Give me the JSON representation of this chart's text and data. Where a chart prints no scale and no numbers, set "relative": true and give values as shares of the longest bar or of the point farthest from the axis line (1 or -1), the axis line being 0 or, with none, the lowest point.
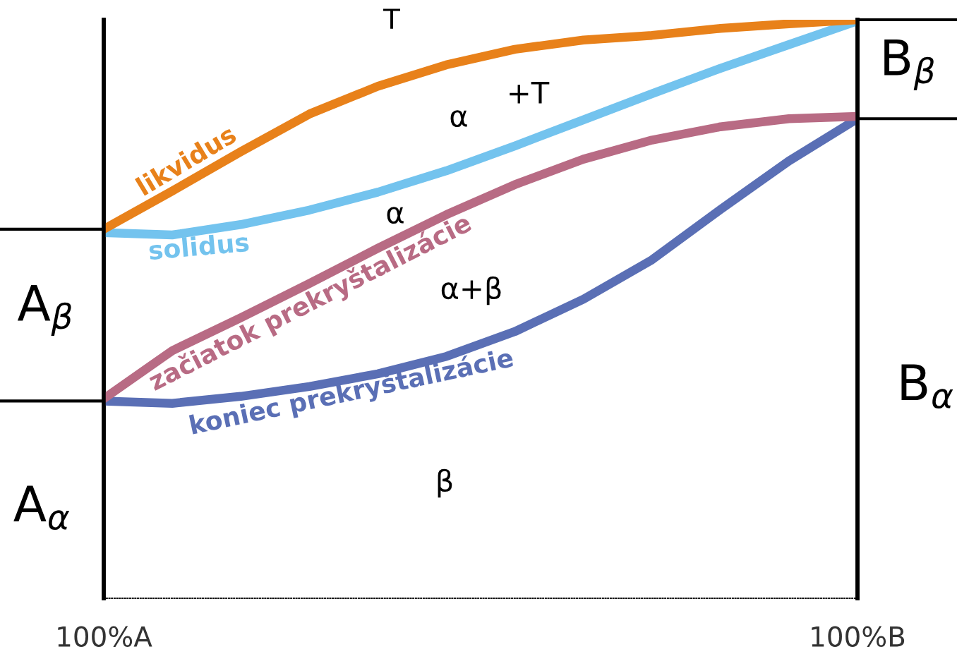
{
  "chart_data": {
    "type": "line",
    "relative": true,
    "categories": [
      "100%A",
      null,
      null,
      null,
      null,
      null,
      null,
      null,
      null,
      null,
      null,
      "100%B"
    ],
    "line_style": "solid",
    "marker": "none",
    "grid": false,
    "series": [
      {
        "name": "likvidus",
        "color": "#e8811a",
        "values": [
          0.638,
          0.704,
          0.772,
          0.837,
          0.885,
          0.922,
          0.949,
          0.965,
          0.973,
          0.985,
          0.993,
          1.0
        ]
      },
      {
        "name": "solidus",
        "color": "#73c3ee",
        "values": [
          0.632,
          0.628,
          0.646,
          0.671,
          0.702,
          0.739,
          0.782,
          0.827,
          0.872,
          0.916,
          0.957,
          0.998
        ]
      },
      {
        "name": "začiatok prekryštalizácie",
        "color": "#b86b84",
        "values": [
          0.345,
          0.428,
          0.485,
          0.544,
          0.605,
          0.663,
          0.715,
          0.759,
          0.792,
          0.815,
          0.829,
          0.833
        ]
      },
      {
        "name": "koniec prekryštalizácie",
        "color": "#5a6fb5",
        "values": [
          0.341,
          0.337,
          0.349,
          0.366,
          0.388,
          0.418,
          0.461,
          0.517,
          0.585,
          0.672,
          0.756,
          0.829
        ]
      }
    ],
    "annotations": [
      "T",
      "α",
      "+T",
      "α",
      "α+β",
      "β",
      "A$_{β}$",
      "A$_{α}$",
      "B$_{β}$",
      "B$_{α}$"
    ]
  }
}
